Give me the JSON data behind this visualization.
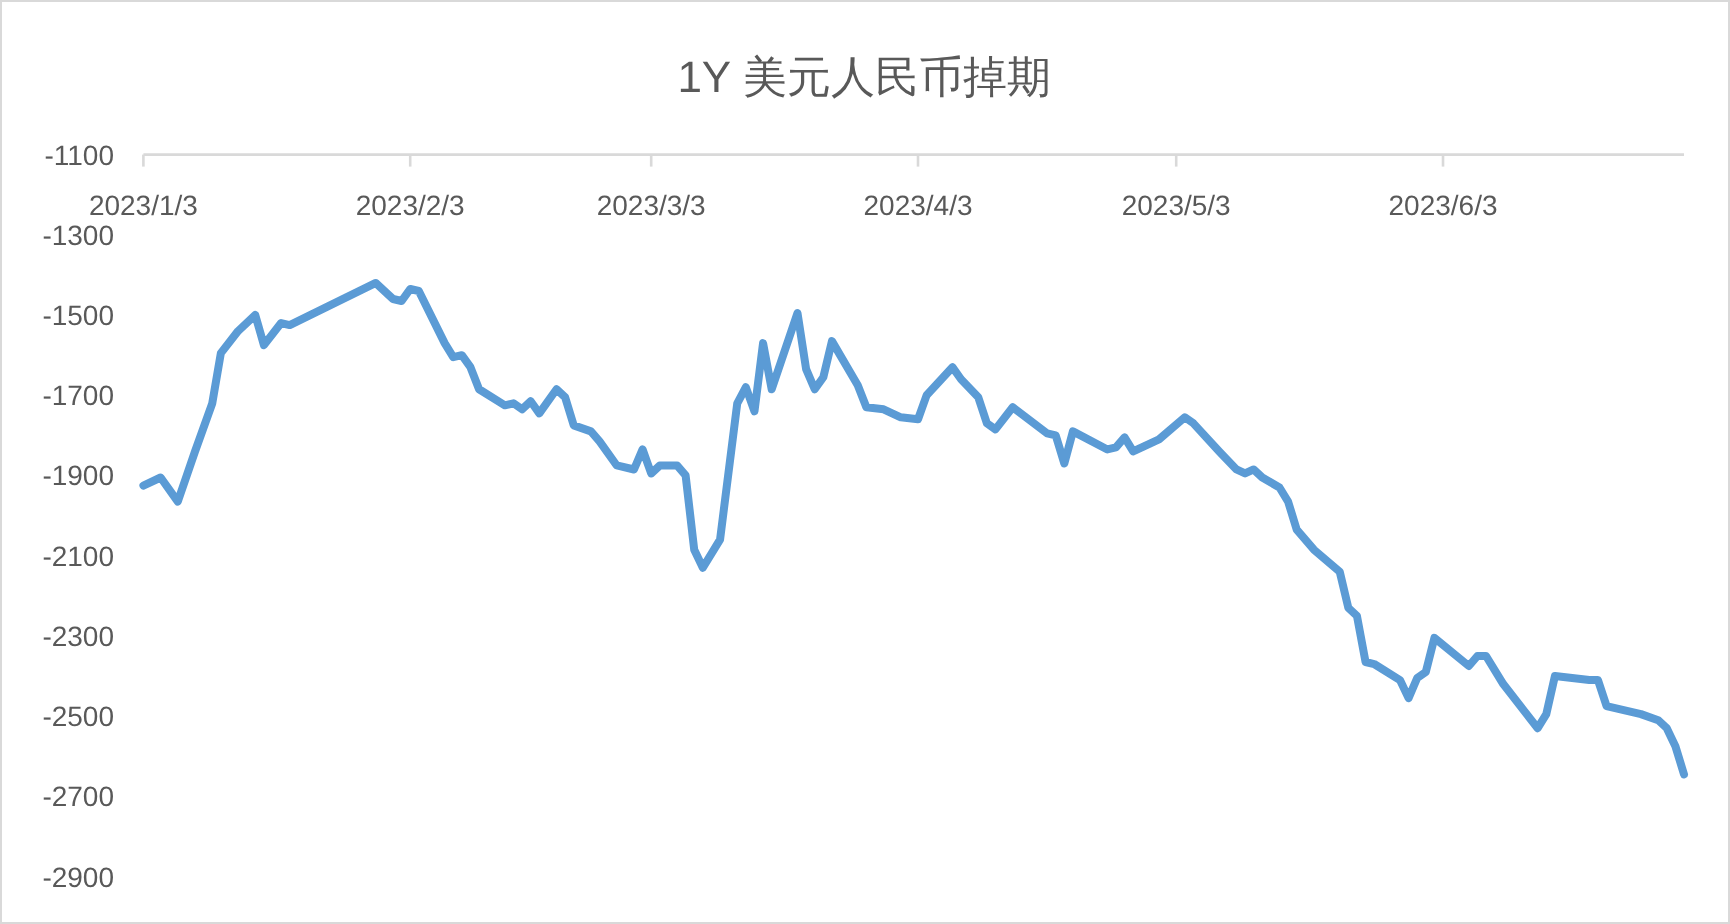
{
  "chart_data": {
    "type": "line",
    "title": "1Y 美元人民币掉期",
    "x": [
      "2023-01-03",
      "2023-01-05",
      "2023-01-07",
      "2023-01-09",
      "2023-01-11",
      "2023-01-12",
      "2023-01-14",
      "2023-01-16",
      "2023-01-17",
      "2023-01-19",
      "2023-01-20",
      "2023-01-30",
      "2023-02-01",
      "2023-02-02",
      "2023-02-03",
      "2023-02-04",
      "2023-02-07",
      "2023-02-08",
      "2023-02-09",
      "2023-02-10",
      "2023-02-11",
      "2023-02-14",
      "2023-02-15",
      "2023-02-16",
      "2023-02-17",
      "2023-02-18",
      "2023-02-20",
      "2023-02-21",
      "2023-02-22",
      "2023-02-24",
      "2023-02-25",
      "2023-02-27",
      "2023-03-01",
      "2023-03-02",
      "2023-03-03",
      "2023-03-04",
      "2023-03-06",
      "2023-03-07",
      "2023-03-08",
      "2023-03-09",
      "2023-03-11",
      "2023-03-13",
      "2023-03-14",
      "2023-03-15",
      "2023-03-16",
      "2023-03-17",
      "2023-03-20",
      "2023-03-21",
      "2023-03-22",
      "2023-03-23",
      "2023-03-24",
      "2023-03-27",
      "2023-03-28",
      "2023-03-30",
      "2023-04-01",
      "2023-04-03",
      "2023-04-04",
      "2023-04-07",
      "2023-04-08",
      "2023-04-10",
      "2023-04-11",
      "2023-04-12",
      "2023-04-14",
      "2023-04-18",
      "2023-04-19",
      "2023-04-20",
      "2023-04-21",
      "2023-04-25",
      "2023-04-26",
      "2023-04-27",
      "2023-04-28",
      "2023-05-01",
      "2023-05-04",
      "2023-05-05",
      "2023-05-08",
      "2023-05-10",
      "2023-05-11",
      "2023-05-12",
      "2023-05-13",
      "2023-05-15",
      "2023-05-16",
      "2023-05-17",
      "2023-05-19",
      "2023-05-22",
      "2023-05-23",
      "2023-05-24",
      "2023-05-25",
      "2023-05-26",
      "2023-05-29",
      "2023-05-30",
      "2023-05-31",
      "2023-06-01",
      "2023-06-02",
      "2023-06-06",
      "2023-06-07",
      "2023-06-08",
      "2023-06-10",
      "2023-06-14",
      "2023-06-15",
      "2023-06-16",
      "2023-06-20",
      "2023-06-21",
      "2023-06-22",
      "2023-06-26",
      "2023-06-28",
      "2023-06-29",
      "2023-06-30",
      "2023-07-01"
    ],
    "series": [
      {
        "color": "#5b9bd5",
        "values": [
          -1925,
          -1905,
          -1965,
          -1840,
          -1720,
          -1595,
          -1540,
          -1500,
          -1575,
          -1520,
          -1525,
          -1420,
          -1460,
          -1465,
          -1435,
          -1440,
          -1570,
          -1605,
          -1600,
          -1630,
          -1685,
          -1725,
          -1720,
          -1735,
          -1715,
          -1745,
          -1685,
          -1705,
          -1775,
          -1790,
          -1815,
          -1875,
          -1885,
          -1835,
          -1895,
          -1875,
          -1875,
          -1900,
          -2085,
          -2130,
          -2060,
          -1720,
          -1680,
          -1740,
          -1570,
          -1685,
          -1495,
          -1635,
          -1685,
          -1655,
          -1565,
          -1675,
          -1730,
          -1735,
          -1755,
          -1760,
          -1700,
          -1630,
          -1660,
          -1705,
          -1770,
          -1785,
          -1730,
          -1795,
          -1800,
          -1870,
          -1790,
          -1835,
          -1830,
          -1805,
          -1840,
          -1810,
          -1755,
          -1770,
          -1840,
          -1885,
          -1895,
          -1885,
          -1905,
          -1930,
          -1965,
          -2035,
          -2085,
          -2140,
          -2230,
          -2250,
          -2365,
          -2370,
          -2410,
          -2455,
          -2405,
          -2390,
          -2305,
          -2375,
          -2350,
          -2350,
          -2420,
          -2530,
          -2495,
          -2400,
          -2410,
          -2410,
          -2475,
          -2495,
          -2510,
          -2530,
          -2575,
          -2645
        ]
      }
    ],
    "xlim": [
      "2023-01-03",
      "2023-07-01"
    ],
    "xticks": [
      {
        "value": "2023-01-03",
        "label": "2023/1/3"
      },
      {
        "value": "2023-02-03",
        "label": "2023/2/3"
      },
      {
        "value": "2023-03-03",
        "label": "2023/3/3"
      },
      {
        "value": "2023-04-03",
        "label": "2023/4/3"
      },
      {
        "value": "2023-05-03",
        "label": "2023/5/3"
      },
      {
        "value": "2023-06-03",
        "label": "2023/6/3"
      }
    ],
    "ylim": [
      -2900,
      -1100
    ],
    "yticks": [
      -2900,
      -2700,
      -2500,
      -2300,
      -2100,
      -1900,
      -1700,
      -1500,
      -1300,
      -1100
    ],
    "grid": false,
    "marker": "none",
    "line_style": "solid"
  }
}
